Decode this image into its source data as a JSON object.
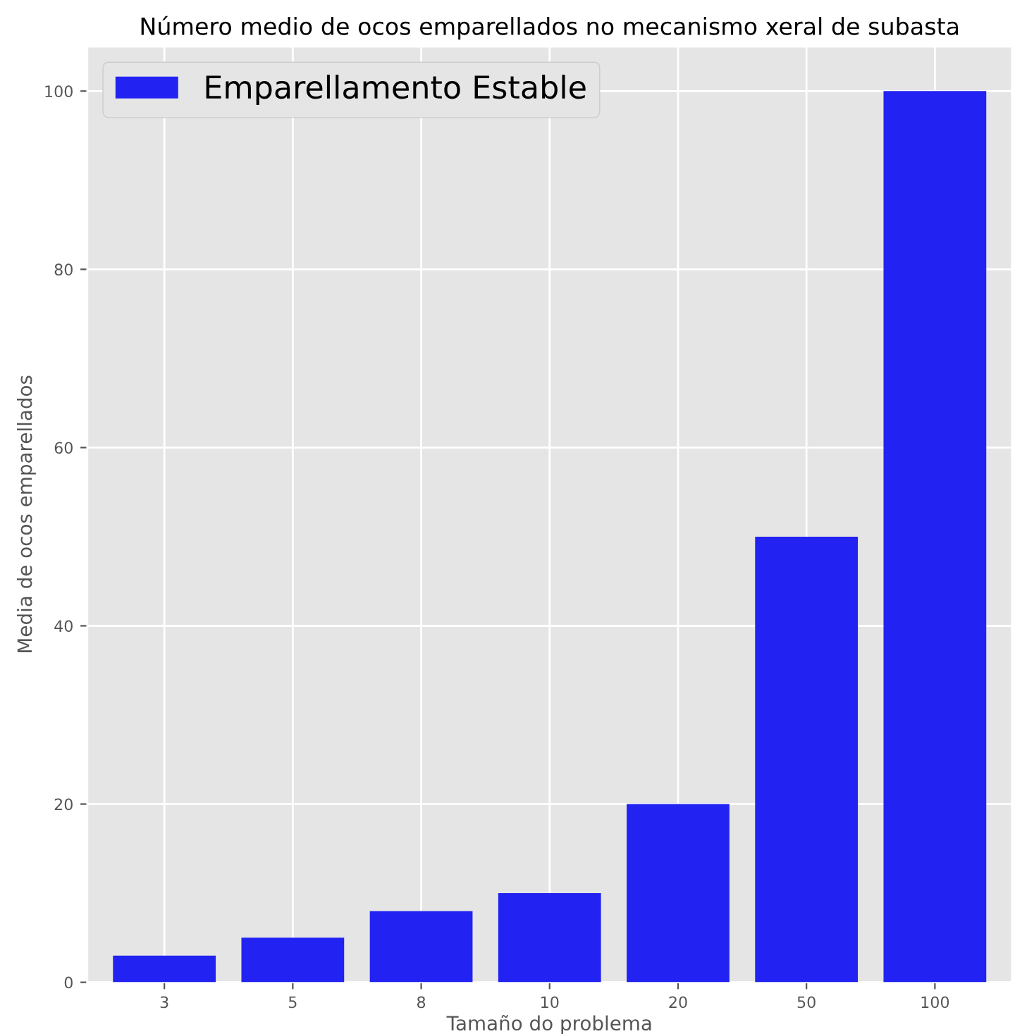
{
  "chart_data": {
    "type": "bar",
    "title": "Número medio de ocos emparellados no mecanismo xeral de subasta",
    "xlabel": "Tamaño do problema",
    "ylabel": "Media de ocos emparellados",
    "categories": [
      "3",
      "5",
      "8",
      "10",
      "20",
      "50",
      "100"
    ],
    "series": [
      {
        "name": "Emparellamento Estable",
        "color": "#2222f2",
        "values": [
          3,
          5,
          8,
          10,
          20,
          50,
          100
        ]
      }
    ],
    "ylim": [
      0,
      105
    ],
    "yticks": [
      0,
      20,
      40,
      60,
      80,
      100
    ],
    "grid": true,
    "legend": "top left"
  }
}
